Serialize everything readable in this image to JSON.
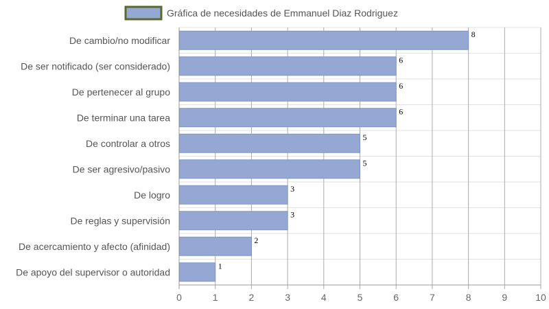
{
  "chart_data": {
    "type": "bar",
    "orientation": "horizontal",
    "categories": [
      "De cambio/no modificar",
      "De ser notificado (ser considerado)",
      "De pertenecer al grupo",
      "De terminar una tarea",
      "De controlar a otros",
      "De ser agresivo/pasivo",
      "De logro",
      "De reglas y supervisión",
      "De acercamiento y afecto (afinidad)",
      "De apoyo del supervisor o autoridad"
    ],
    "series": [
      {
        "name": "Gráfica de necesidades de Emmanuel Diaz Rodriguez",
        "values": [
          8,
          6,
          6,
          6,
          5,
          5,
          3,
          3,
          2,
          1
        ],
        "color": "#95a8d4",
        "border_color": "#7f93c5"
      }
    ],
    "xlim": [
      0,
      10
    ],
    "x_ticks": [
      "0",
      "1",
      "2",
      "3",
      "4",
      "5",
      "6",
      "7",
      "8",
      "9",
      "10"
    ],
    "grid": true,
    "legend_position": "top",
    "legend_border_color": "#5a6a2a",
    "show_value_labels": true
  }
}
